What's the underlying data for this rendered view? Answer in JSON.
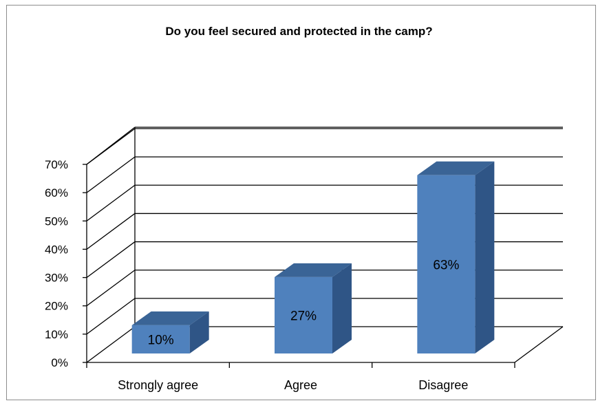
{
  "chart_data": {
    "type": "bar",
    "title": "Do you feel secured and protected in the camp?",
    "categories": [
      "Strongly agree",
      "Agree",
      "Disagree"
    ],
    "values": [
      10,
      27,
      63
    ],
    "data_labels": [
      "10%",
      "27%",
      "63%"
    ],
    "y_ticks": [
      "0%",
      "10%",
      "20%",
      "30%",
      "40%",
      "50%",
      "60%",
      "70%"
    ],
    "ylim": [
      0,
      70
    ],
    "grid": true,
    "style": "3d-column",
    "colors": {
      "bar_front": "#4f81bd",
      "bar_top": "#3a6496",
      "bar_side": "#2f5586"
    }
  }
}
